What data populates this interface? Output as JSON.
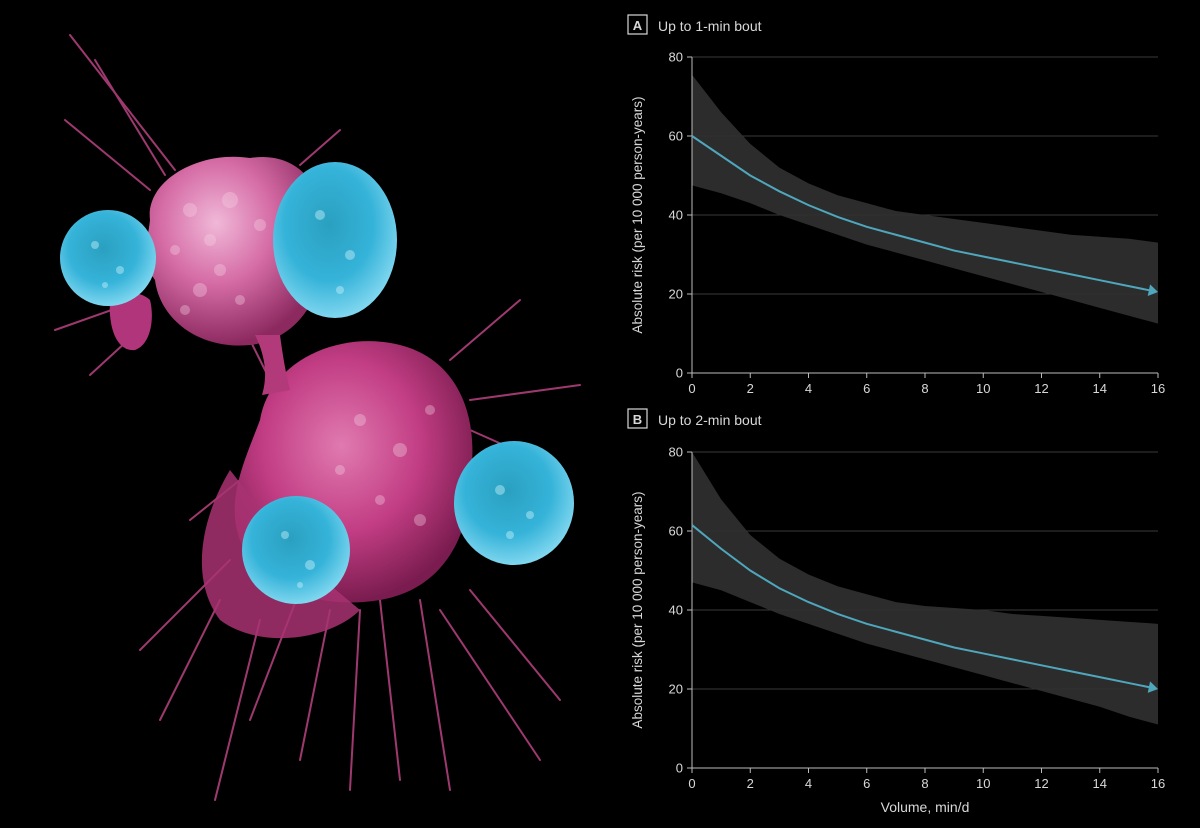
{
  "colors": {
    "background": "#000000",
    "band": "#2e2e2e",
    "line": "#4fa7bd",
    "grid": "#3a3a3a",
    "axis": "#bbbbbb",
    "text": "#d8d8d8",
    "cell_magenta": "#c23d84",
    "cell_cyan": "#35b3d9"
  },
  "chart_data": [
    {
      "type": "line",
      "panel_letter": "A",
      "title": "Up to 1-min bout",
      "xlabel": "",
      "ylabel": "Absolute risk (per 10 000 person-years)",
      "xlim": [
        0,
        16
      ],
      "ylim": [
        0,
        80
      ],
      "x_ticks": [
        0,
        2,
        4,
        6,
        8,
        10,
        12,
        14,
        16
      ],
      "y_ticks": [
        0,
        20,
        40,
        60,
        80
      ],
      "grid": "horizontal",
      "x": [
        0,
        1,
        2,
        3,
        4,
        5,
        6,
        7,
        8,
        9,
        10,
        11,
        12,
        13,
        14,
        15,
        16
      ],
      "series": [
        {
          "values": [
            60,
            55,
            50,
            46,
            42.5,
            39.5,
            37,
            35,
            33,
            31,
            29.5,
            28,
            26.5,
            25,
            23.5,
            22,
            20.5
          ],
          "lower": [
            47.5,
            45.5,
            43,
            40,
            37.5,
            35,
            32.5,
            30.5,
            28.5,
            26.5,
            24.5,
            22.5,
            20.5,
            18.5,
            16.5,
            14.5,
            12.5
          ],
          "upper": [
            75.5,
            66,
            58,
            52,
            48,
            45,
            43,
            41,
            40,
            39,
            38,
            37,
            36,
            35,
            34.5,
            34,
            33
          ]
        }
      ]
    },
    {
      "type": "line",
      "panel_letter": "B",
      "title": "Up to 2-min bout",
      "xlabel": "Volume, min/d",
      "ylabel": "Absolute risk (per 10 000 person-years)",
      "xlim": [
        0,
        16
      ],
      "ylim": [
        0,
        80
      ],
      "x_ticks": [
        0,
        2,
        4,
        6,
        8,
        10,
        12,
        14,
        16
      ],
      "y_ticks": [
        0,
        20,
        40,
        60,
        80
      ],
      "grid": "horizontal",
      "x": [
        0,
        1,
        2,
        3,
        4,
        5,
        6,
        7,
        8,
        9,
        10,
        11,
        12,
        13,
        14,
        15,
        16
      ],
      "series": [
        {
          "values": [
            61.5,
            55.5,
            50,
            45.5,
            42,
            39,
            36.5,
            34.5,
            32.5,
            30.5,
            29,
            27.5,
            26,
            24.5,
            23,
            21.5,
            20
          ],
          "lower": [
            47,
            45,
            42,
            39,
            36.5,
            34,
            31.5,
            29.5,
            27.5,
            25.5,
            23.5,
            21.5,
            19.5,
            17.5,
            15.5,
            13,
            11
          ],
          "upper": [
            80,
            68,
            59,
            53,
            49,
            46,
            44,
            42,
            41,
            40.5,
            40,
            39,
            38.5,
            38,
            37.5,
            37,
            36.5
          ]
        }
      ]
    }
  ]
}
